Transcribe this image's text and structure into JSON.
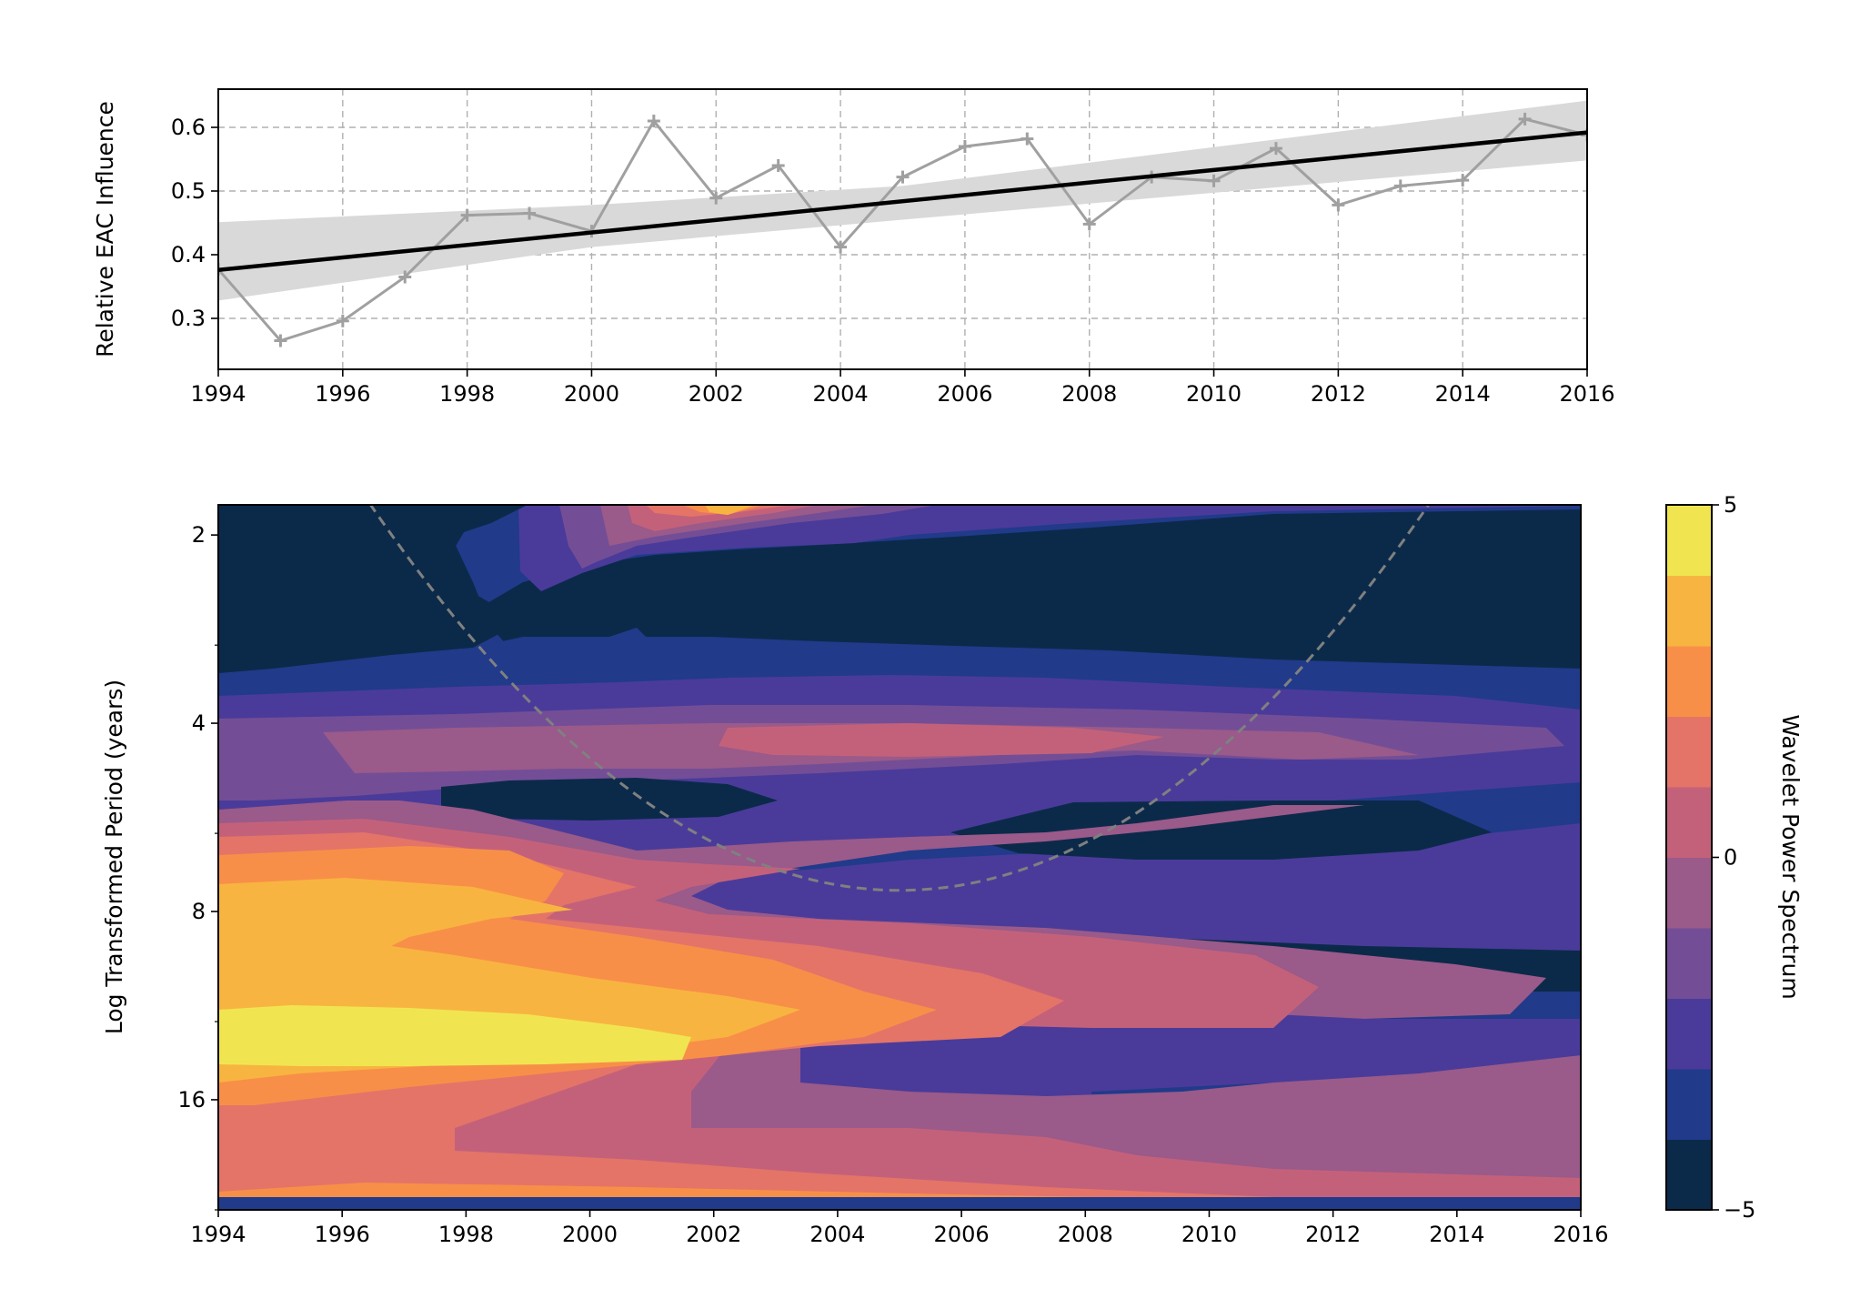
{
  "chart_data": [
    {
      "type": "line",
      "ylabel": "Relative EAC Influence",
      "xlim": [
        1994,
        2016
      ],
      "ylim": [
        0.22,
        0.66
      ],
      "xticks": [
        "1994",
        "1996",
        "1998",
        "2000",
        "2002",
        "2004",
        "2006",
        "2008",
        "2010",
        "2012",
        "2014",
        "2016"
      ],
      "yticks": [
        "0.3",
        "0.4",
        "0.5",
        "0.6"
      ],
      "grid": true,
      "x": [
        1994,
        1995,
        1996,
        1997,
        1998,
        1999,
        2000,
        2001,
        2002,
        2003,
        2004,
        2005,
        2006,
        2007,
        2008,
        2009,
        2010,
        2011,
        2012,
        2013,
        2014,
        2015,
        2016
      ],
      "series": [
        {
          "values": [
            0.377,
            0.265,
            0.296,
            0.365,
            0.462,
            0.465,
            0.437,
            0.61,
            0.489,
            0.54,
            0.412,
            0.522,
            0.57,
            0.582,
            0.448,
            0.522,
            0.516,
            0.567,
            0.478,
            0.508,
            0.517,
            0.613,
            0.588
          ],
          "color": "#a0a0a0",
          "marker": "plus"
        }
      ],
      "trend": {
        "start": [
          1994,
          0.376
        ],
        "end": [
          2016,
          0.592
        ],
        "color": "#000000"
      },
      "confidence_band": {
        "x": [
          1994,
          2000,
          2005,
          2016
        ],
        "lower": [
          0.328,
          0.412,
          0.455,
          0.548
        ],
        "upper": [
          0.451,
          0.478,
          0.508,
          0.642
        ],
        "color": "#d9d9d9"
      }
    },
    {
      "type": "heatmap",
      "xlabel": "",
      "ylabel": "Log Transformed Period (years)",
      "xlim": [
        1994,
        2016
      ],
      "period_range": [
        1.79,
        24
      ],
      "xticks": [
        "1994",
        "1996",
        "1998",
        "2000",
        "2002",
        "2004",
        "2006",
        "2008",
        "2010",
        "2012",
        "2014",
        "2016"
      ],
      "yticks": [
        "2",
        "4",
        "8",
        "16"
      ],
      "colorbar": {
        "label": "Wavelet Power Spectrum",
        "range": [
          -5,
          5
        ],
        "ticks": [
          "5",
          "0",
          "−5"
        ],
        "colors": [
          "#0b2a4a",
          "#213a8a",
          "#4a3b9a",
          "#734e96",
          "#9a5a8a",
          "#c4617a",
          "#e47468",
          "#f88f48",
          "#f8b440",
          "#f0e550"
        ]
      },
      "cone_of_influence": {
        "vertex": [
          2005,
          7.4
        ],
        "edges": [
          [
            1996.8,
            2.0
          ],
          [
            2013.2,
            2.0
          ]
        ],
        "color": "#808080"
      },
      "bands": [
        {
          "label": "yellow band",
          "period": 12.5,
          "level": 4.5
        },
        {
          "label": "orange band",
          "period": 8.3,
          "level": 3.2
        },
        {
          "label": "dark trough",
          "period": 9.0,
          "level": -4.5
        },
        {
          "label": "pink band",
          "period": 4.3,
          "level": 0.5
        },
        {
          "label": "upper dark region",
          "period": 2.8,
          "level": -4.5
        }
      ]
    }
  ]
}
